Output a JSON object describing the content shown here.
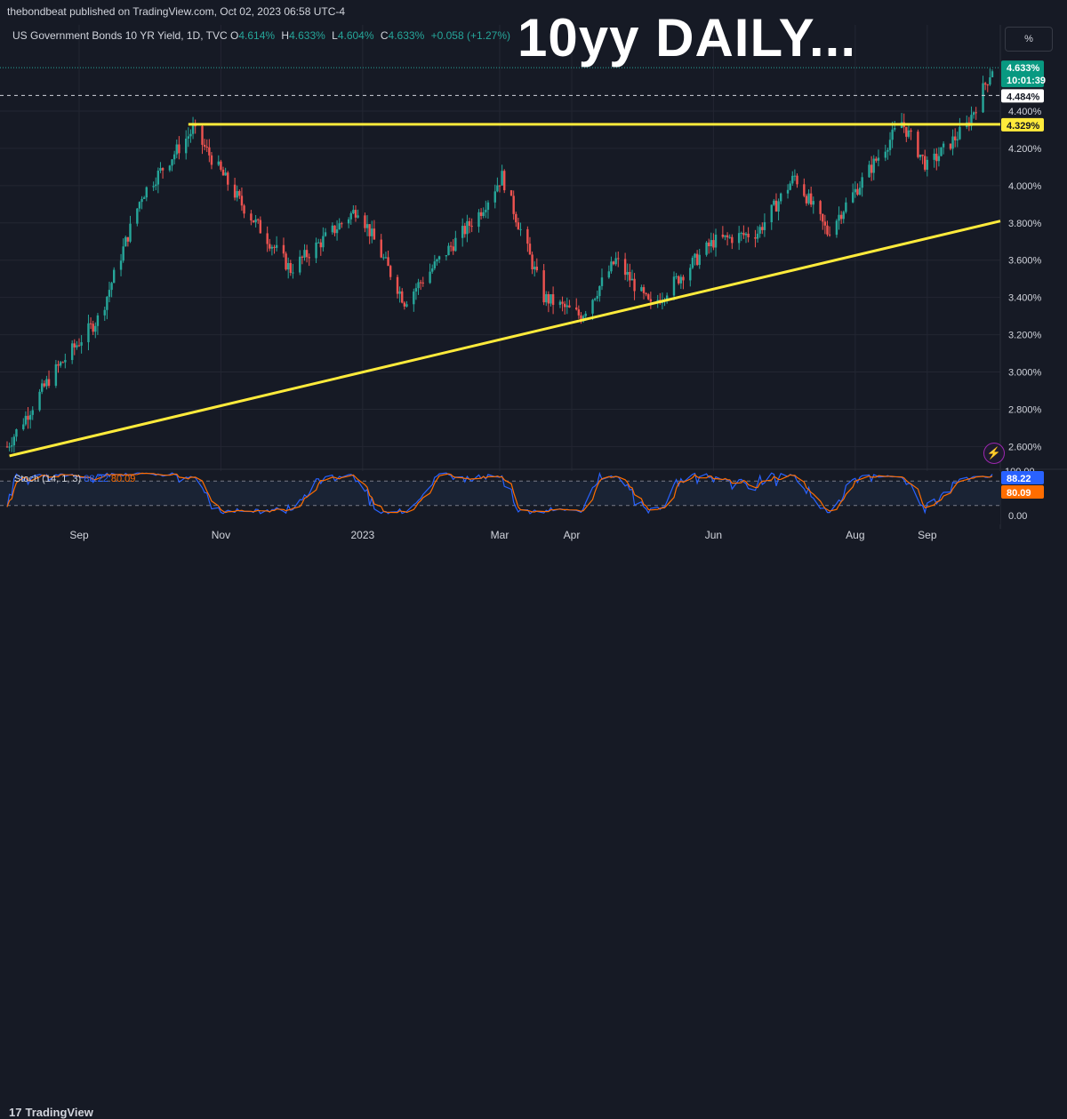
{
  "publisher": "thebondbeat published on TradingView.com, Oct 02, 2023 06:58 UTC-4",
  "legend": {
    "symbol": "US Government Bonds 10 YR Yield, 1D, TVC",
    "o_label": "O",
    "o_value": "4.614%",
    "h_label": "H",
    "h_value": "4.633%",
    "l_label": "L",
    "l_value": "4.604%",
    "c_label": "C",
    "c_value": "4.633%",
    "change": "+0.058 (+1.27%)"
  },
  "overlay_title": "10yy DAILY...",
  "pct_button": "%",
  "stoch": {
    "label": "Stoch (14, 1, 3)",
    "k_value": "88.22",
    "d_value": "80.09",
    "k_color": "#2962ff",
    "d_color": "#ff6d00"
  },
  "price_badges": {
    "last": "4.633%",
    "countdown": "10:01:39",
    "dashed": "4.484%",
    "support": "4.329%",
    "stoch_k": "88.22",
    "stoch_d": "80.09",
    "stoch_top": "100.00"
  },
  "footer_logo": "TradingView",
  "colors": {
    "up": "#26a69a",
    "down": "#ef5350",
    "trendline": "#ffeb3b",
    "background": "#161a25"
  },
  "chart_data": {
    "type": "candlestick",
    "title": "US Government Bonds 10 YR Yield, 1D, TVC",
    "y_ticks": [
      "4.400%",
      "4.200%",
      "4.000%",
      "3.800%",
      "3.600%",
      "3.400%",
      "3.200%",
      "3.000%",
      "2.800%",
      "2.600%"
    ],
    "y_range": [
      2.54,
      4.71
    ],
    "x_ticks": [
      "Sep",
      "Nov",
      "2023",
      "Mar",
      "Apr",
      "Jun",
      "Aug",
      "Sep"
    ],
    "x_tick_dates": [
      "2022-09-01",
      "2022-11-01",
      "2023-01-01",
      "2023-03-01",
      "2023-04-01",
      "2023-06-01",
      "2023-08-01",
      "2023-09-01"
    ],
    "stoch_ticks": [
      "0.00"
    ],
    "key_points": [
      {
        "date": "2022-08-01",
        "yield": 2.6
      },
      {
        "date": "2022-08-20",
        "yield": 2.98
      },
      {
        "date": "2022-09-10",
        "yield": 3.3
      },
      {
        "date": "2022-09-28",
        "yield": 3.95
      },
      {
        "date": "2022-10-20",
        "yield": 4.3
      },
      {
        "date": "2022-11-10",
        "yield": 3.9
      },
      {
        "date": "2022-12-01",
        "yield": 3.55
      },
      {
        "date": "2022-12-30",
        "yield": 3.88
      },
      {
        "date": "2023-01-19",
        "yield": 3.38
      },
      {
        "date": "2023-02-20",
        "yield": 3.85
      },
      {
        "date": "2023-03-02",
        "yield": 4.05
      },
      {
        "date": "2023-03-20",
        "yield": 3.4
      },
      {
        "date": "2023-04-05",
        "yield": 3.3
      },
      {
        "date": "2023-04-20",
        "yield": 3.6
      },
      {
        "date": "2023-05-05",
        "yield": 3.35
      },
      {
        "date": "2023-06-01",
        "yield": 3.7
      },
      {
        "date": "2023-06-20",
        "yield": 3.75
      },
      {
        "date": "2023-07-06",
        "yield": 4.05
      },
      {
        "date": "2023-07-20",
        "yield": 3.75
      },
      {
        "date": "2023-08-21",
        "yield": 4.34
      },
      {
        "date": "2023-09-01",
        "yield": 4.1
      },
      {
        "date": "2023-09-18",
        "yield": 4.32
      },
      {
        "date": "2023-09-29",
        "yield": 4.63
      }
    ],
    "horizontal_line": {
      "yield": 4.329
    },
    "trendline": {
      "start": {
        "date": "2022-08-02",
        "yield": 2.55
      },
      "end": {
        "date": "2023-09-30",
        "yield": 3.81
      }
    },
    "grid": true
  }
}
